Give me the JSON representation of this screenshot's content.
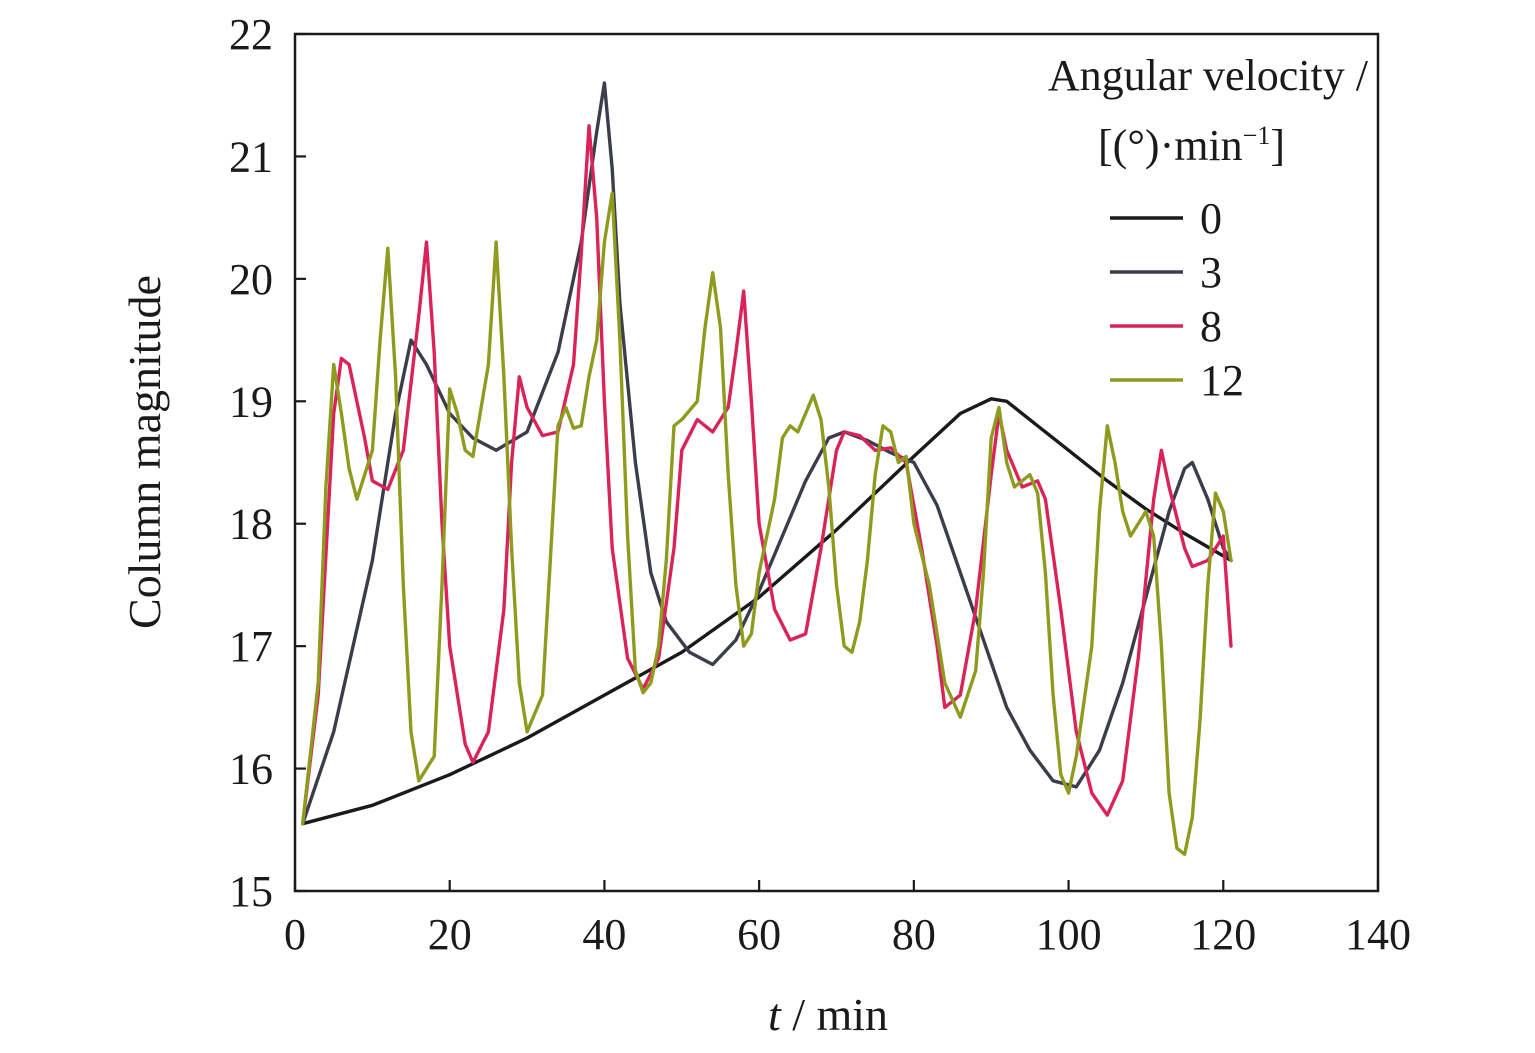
{
  "chart_data": {
    "type": "line",
    "title": "",
    "xlabel_var": "t",
    "xlabel_unit": " / min",
    "ylabel": "Column magnitude",
    "xlim": [
      0,
      140
    ],
    "ylim": [
      15,
      22
    ],
    "xticks": [
      0,
      20,
      40,
      60,
      80,
      100,
      120,
      140
    ],
    "yticks": [
      15,
      16,
      17,
      18,
      19,
      20,
      21,
      22
    ],
    "xtick_labels": [
      "0",
      "20",
      "40",
      "60",
      "80",
      "100",
      "120",
      "140"
    ],
    "ytick_labels": [
      "15",
      "16",
      "17",
      "18",
      "19",
      "20",
      "21",
      "22"
    ],
    "grid": false,
    "legend": {
      "position": "top-right",
      "title_line1": "Angular velocity /",
      "title_line2_open": "[(°)·min",
      "title_line2_sup": "−1",
      "title_line2_close": "]"
    },
    "series": [
      {
        "name": "0",
        "color": "#1a1a1a",
        "points": [
          [
            1,
            15.55
          ],
          [
            10,
            15.7
          ],
          [
            20,
            15.95
          ],
          [
            30,
            16.25
          ],
          [
            40,
            16.6
          ],
          [
            50,
            16.95
          ],
          [
            60,
            17.4
          ],
          [
            70,
            17.95
          ],
          [
            80,
            18.55
          ],
          [
            86,
            18.9
          ],
          [
            90,
            19.02
          ],
          [
            92,
            19.0
          ],
          [
            96,
            18.8
          ],
          [
            100,
            18.6
          ],
          [
            105,
            18.35
          ],
          [
            110,
            18.12
          ],
          [
            115,
            17.92
          ],
          [
            121,
            17.7
          ]
        ]
      },
      {
        "name": "3",
        "color": "#3b3d4a",
        "points": [
          [
            1,
            15.55
          ],
          [
            5,
            16.3
          ],
          [
            10,
            17.7
          ],
          [
            13,
            18.9
          ],
          [
            15,
            19.5
          ],
          [
            17,
            19.3
          ],
          [
            20,
            18.9
          ],
          [
            23,
            18.7
          ],
          [
            26,
            18.6
          ],
          [
            30,
            18.75
          ],
          [
            34,
            19.4
          ],
          [
            37,
            20.3
          ],
          [
            39,
            21.2
          ],
          [
            40,
            21.6
          ],
          [
            41,
            20.9
          ],
          [
            42,
            19.8
          ],
          [
            44,
            18.5
          ],
          [
            46,
            17.6
          ],
          [
            48,
            17.2
          ],
          [
            51,
            16.95
          ],
          [
            54,
            16.85
          ],
          [
            57,
            17.05
          ],
          [
            60,
            17.45
          ],
          [
            63,
            17.9
          ],
          [
            66,
            18.35
          ],
          [
            69,
            18.7
          ],
          [
            71,
            18.75
          ],
          [
            74,
            18.68
          ],
          [
            77,
            18.58
          ],
          [
            80,
            18.5
          ],
          [
            83,
            18.15
          ],
          [
            86,
            17.6
          ],
          [
            89,
            17.05
          ],
          [
            92,
            16.5
          ],
          [
            95,
            16.15
          ],
          [
            98,
            15.9
          ],
          [
            101,
            15.85
          ],
          [
            104,
            16.15
          ],
          [
            107,
            16.7
          ],
          [
            110,
            17.4
          ],
          [
            113,
            18.1
          ],
          [
            115,
            18.45
          ],
          [
            116,
            18.5
          ],
          [
            118,
            18.2
          ],
          [
            120,
            17.8
          ],
          [
            121,
            17.7
          ]
        ]
      },
      {
        "name": "8",
        "color": "#d9245a",
        "points": [
          [
            1,
            15.55
          ],
          [
            3,
            16.6
          ],
          [
            5,
            18.9
          ],
          [
            6,
            19.35
          ],
          [
            7,
            19.3
          ],
          [
            9,
            18.7
          ],
          [
            10,
            18.35
          ],
          [
            12,
            18.28
          ],
          [
            14,
            18.6
          ],
          [
            16,
            19.7
          ],
          [
            17,
            20.3
          ],
          [
            18,
            19.4
          ],
          [
            19,
            18.0
          ],
          [
            20,
            17.0
          ],
          [
            22,
            16.2
          ],
          [
            23,
            16.05
          ],
          [
            25,
            16.3
          ],
          [
            27,
            17.3
          ],
          [
            28,
            18.5
          ],
          [
            29,
            19.2
          ],
          [
            30,
            18.95
          ],
          [
            32,
            18.72
          ],
          [
            34,
            18.75
          ],
          [
            36,
            19.3
          ],
          [
            37,
            20.2
          ],
          [
            38,
            21.25
          ],
          [
            39,
            20.5
          ],
          [
            40,
            19.0
          ],
          [
            41,
            17.8
          ],
          [
            43,
            16.9
          ],
          [
            45,
            16.65
          ],
          [
            47,
            16.9
          ],
          [
            49,
            17.8
          ],
          [
            50,
            18.6
          ],
          [
            52,
            18.85
          ],
          [
            54,
            18.75
          ],
          [
            56,
            18.95
          ],
          [
            57,
            19.4
          ],
          [
            58,
            19.9
          ],
          [
            59,
            19.0
          ],
          [
            60,
            18.0
          ],
          [
            62,
            17.3
          ],
          [
            64,
            17.05
          ],
          [
            66,
            17.1
          ],
          [
            68,
            17.8
          ],
          [
            70,
            18.6
          ],
          [
            71,
            18.75
          ],
          [
            73,
            18.72
          ],
          [
            75,
            18.6
          ],
          [
            77,
            18.62
          ],
          [
            79,
            18.5
          ],
          [
            81,
            17.8
          ],
          [
            83,
            17.0
          ],
          [
            84,
            16.5
          ],
          [
            86,
            16.6
          ],
          [
            88,
            17.3
          ],
          [
            90,
            18.4
          ],
          [
            91,
            18.9
          ],
          [
            92,
            18.6
          ],
          [
            94,
            18.3
          ],
          [
            96,
            18.35
          ],
          [
            97,
            18.2
          ],
          [
            99,
            17.3
          ],
          [
            101,
            16.3
          ],
          [
            103,
            15.8
          ],
          [
            105,
            15.62
          ],
          [
            107,
            15.9
          ],
          [
            109,
            16.9
          ],
          [
            111,
            18.2
          ],
          [
            112,
            18.6
          ],
          [
            113,
            18.3
          ],
          [
            115,
            17.8
          ],
          [
            116,
            17.65
          ],
          [
            118,
            17.7
          ],
          [
            120,
            17.9
          ],
          [
            121,
            17.0
          ]
        ]
      },
      {
        "name": "12",
        "color": "#8f9b1f",
        "points": [
          [
            1,
            15.55
          ],
          [
            3,
            16.7
          ],
          [
            4,
            18.3
          ],
          [
            5,
            19.3
          ],
          [
            6,
            18.9
          ],
          [
            7,
            18.45
          ],
          [
            8,
            18.2
          ],
          [
            10,
            18.6
          ],
          [
            11,
            19.5
          ],
          [
            12,
            20.25
          ],
          [
            13,
            19.2
          ],
          [
            14,
            17.5
          ],
          [
            15,
            16.3
          ],
          [
            16,
            15.9
          ],
          [
            18,
            16.1
          ],
          [
            19,
            17.5
          ],
          [
            20,
            19.1
          ],
          [
            21,
            18.9
          ],
          [
            22,
            18.6
          ],
          [
            23,
            18.55
          ],
          [
            25,
            19.3
          ],
          [
            26,
            20.3
          ],
          [
            27,
            19.2
          ],
          [
            28,
            17.8
          ],
          [
            29,
            16.7
          ],
          [
            30,
            16.3
          ],
          [
            32,
            16.6
          ],
          [
            33,
            17.7
          ],
          [
            34,
            18.8
          ],
          [
            35,
            18.95
          ],
          [
            36,
            18.78
          ],
          [
            37,
            18.8
          ],
          [
            38,
            19.2
          ],
          [
            39,
            19.5
          ],
          [
            40,
            20.3
          ],
          [
            41,
            20.7
          ],
          [
            42,
            19.5
          ],
          [
            43,
            17.9
          ],
          [
            44,
            16.8
          ],
          [
            45,
            16.62
          ],
          [
            46,
            16.7
          ],
          [
            47,
            17.0
          ],
          [
            48,
            17.7
          ],
          [
            49,
            18.8
          ],
          [
            50,
            18.85
          ],
          [
            52,
            19.0
          ],
          [
            53,
            19.6
          ],
          [
            54,
            20.05
          ],
          [
            55,
            19.6
          ],
          [
            56,
            18.4
          ],
          [
            57,
            17.5
          ],
          [
            58,
            17.0
          ],
          [
            59,
            17.1
          ],
          [
            60,
            17.6
          ],
          [
            62,
            18.2
          ],
          [
            63,
            18.7
          ],
          [
            64,
            18.8
          ],
          [
            65,
            18.75
          ],
          [
            66,
            18.9
          ],
          [
            67,
            19.05
          ],
          [
            68,
            18.85
          ],
          [
            69,
            18.3
          ],
          [
            70,
            17.5
          ],
          [
            71,
            17.0
          ],
          [
            72,
            16.95
          ],
          [
            73,
            17.2
          ],
          [
            74,
            17.7
          ],
          [
            75,
            18.4
          ],
          [
            76,
            18.8
          ],
          [
            77,
            18.75
          ],
          [
            78,
            18.5
          ],
          [
            79,
            18.55
          ],
          [
            80,
            18.0
          ],
          [
            82,
            17.5
          ],
          [
            84,
            16.7
          ],
          [
            86,
            16.42
          ],
          [
            88,
            16.8
          ],
          [
            89,
            17.6
          ],
          [
            90,
            18.7
          ],
          [
            91,
            18.95
          ],
          [
            92,
            18.5
          ],
          [
            93,
            18.3
          ],
          [
            95,
            18.4
          ],
          [
            96,
            18.25
          ],
          [
            97,
            17.6
          ],
          [
            98,
            16.6
          ],
          [
            99,
            15.95
          ],
          [
            100,
            15.8
          ],
          [
            101,
            16.1
          ],
          [
            103,
            17.0
          ],
          [
            104,
            18.1
          ],
          [
            105,
            18.8
          ],
          [
            106,
            18.5
          ],
          [
            107,
            18.1
          ],
          [
            108,
            17.9
          ],
          [
            110,
            18.1
          ],
          [
            111,
            17.9
          ],
          [
            112,
            17.0
          ],
          [
            113,
            15.8
          ],
          [
            114,
            15.35
          ],
          [
            115,
            15.3
          ],
          [
            116,
            15.6
          ],
          [
            117,
            16.4
          ],
          [
            118,
            17.5
          ],
          [
            119,
            18.25
          ],
          [
            120,
            18.1
          ],
          [
            121,
            17.7
          ]
        ]
      }
    ]
  }
}
